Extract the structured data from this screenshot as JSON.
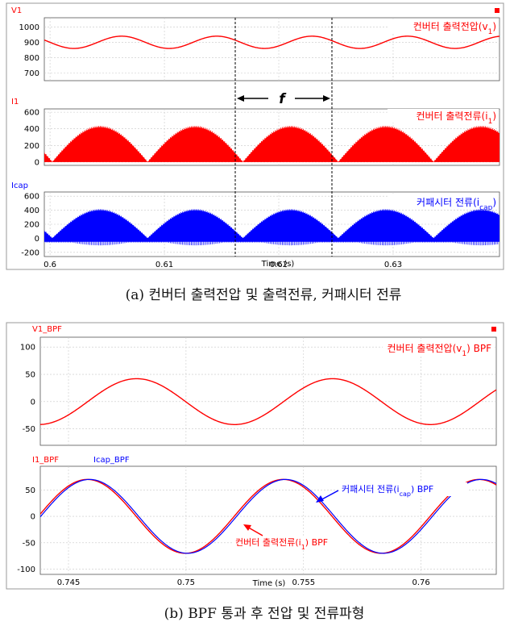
{
  "colors": {
    "red": "#ff0000",
    "blue": "#0000ff",
    "grid": "#c8c8c8",
    "axis": "#000000",
    "annotate": "#000000"
  },
  "captions": {
    "a": "(a) 컨버터 출력전압 및 출력전류, 커패시터 전류",
    "b": "(b) BPF 통과 후 전압 및 전류파형"
  },
  "shared": {
    "xlabel": "Time (s)"
  },
  "annotations": {
    "freq_marker": "f",
    "bpf_blue_arrow": "커패시터 전류(i_cap) BPF",
    "bpf_red_arrow": "컨버터 출력전류(i_1) BPF"
  },
  "chart_data": [
    {
      "type": "line",
      "title": "V1",
      "legend": "컨버터 출력전압(v_1)",
      "x_range": [
        0.5995,
        0.6393
      ],
      "ylim": [
        650,
        1060
      ],
      "yticks": [
        700,
        800,
        900,
        1000
      ],
      "xticks": [],
      "grid": true,
      "series": [
        {
          "color": "#ff0000",
          "waveform": "sine",
          "offset": 900,
          "amplitude": 40,
          "frequency_hz": 120,
          "phase_deg": 180
        }
      ]
    },
    {
      "type": "line",
      "title": "I1",
      "legend": "컨버터 출력전류(i_1)",
      "x_range": [
        0.5995,
        0.6393
      ],
      "ylim": [
        -40,
        640
      ],
      "yticks": [
        0,
        200,
        400,
        600
      ],
      "xticks": [],
      "grid": true,
      "series": [
        {
          "color": "#ff0000",
          "waveform": "rectified_sine_pwm",
          "peak": 420,
          "frequency_hz": 120,
          "zero_at": 0.6002
        }
      ]
    },
    {
      "type": "line",
      "title": "Icap",
      "legend": "커패시터 전류(i_cap)",
      "x_range": [
        0.5995,
        0.6393
      ],
      "ylim": [
        -260,
        660
      ],
      "yticks": [
        -200,
        0,
        200,
        400,
        600
      ],
      "xticks": [
        0.6,
        0.61,
        0.62,
        0.63
      ],
      "grid": true,
      "series": [
        {
          "color": "#0000ff",
          "waveform": "rectified_sine_pwm",
          "peak": 400,
          "ripple_low": -50,
          "frequency_hz": 120,
          "zero_at": 0.6002
        }
      ]
    },
    {
      "type": "line",
      "title": "V1_BPF",
      "legend": "컨버터 출력전압(v_1) BPF",
      "x_range": [
        0.7438,
        0.7632
      ],
      "ylim": [
        -80,
        118
      ],
      "yticks": [
        -50,
        0,
        50,
        100
      ],
      "xticks": [],
      "grid": true,
      "series": [
        {
          "color": "#ff0000",
          "waveform": "sine",
          "offset": 0,
          "amplitude": 42,
          "frequency_hz": 120,
          "peak_at": 0.7479
        }
      ]
    },
    {
      "type": "line",
      "title": "",
      "legend_titles": [
        "I1_BPF",
        "Icap_BPF"
      ],
      "x_range": [
        0.7438,
        0.7632
      ],
      "ylim": [
        -110,
        95
      ],
      "yticks": [
        -100,
        -50,
        0,
        50
      ],
      "xticks": [
        0.745,
        0.75,
        0.755,
        0.76
      ],
      "grid": true,
      "series": [
        {
          "name": "I1_BPF",
          "color": "#ff0000",
          "waveform": "sine",
          "offset": 0,
          "amplitude": 70,
          "frequency_hz": 120,
          "peak_at": 0.7458
        },
        {
          "name": "Icap_BPF",
          "color": "#0000ff",
          "waveform": "sine",
          "offset": 0,
          "amplitude": 70,
          "frequency_hz": 120,
          "peak_at": 0.7459
        }
      ]
    }
  ]
}
